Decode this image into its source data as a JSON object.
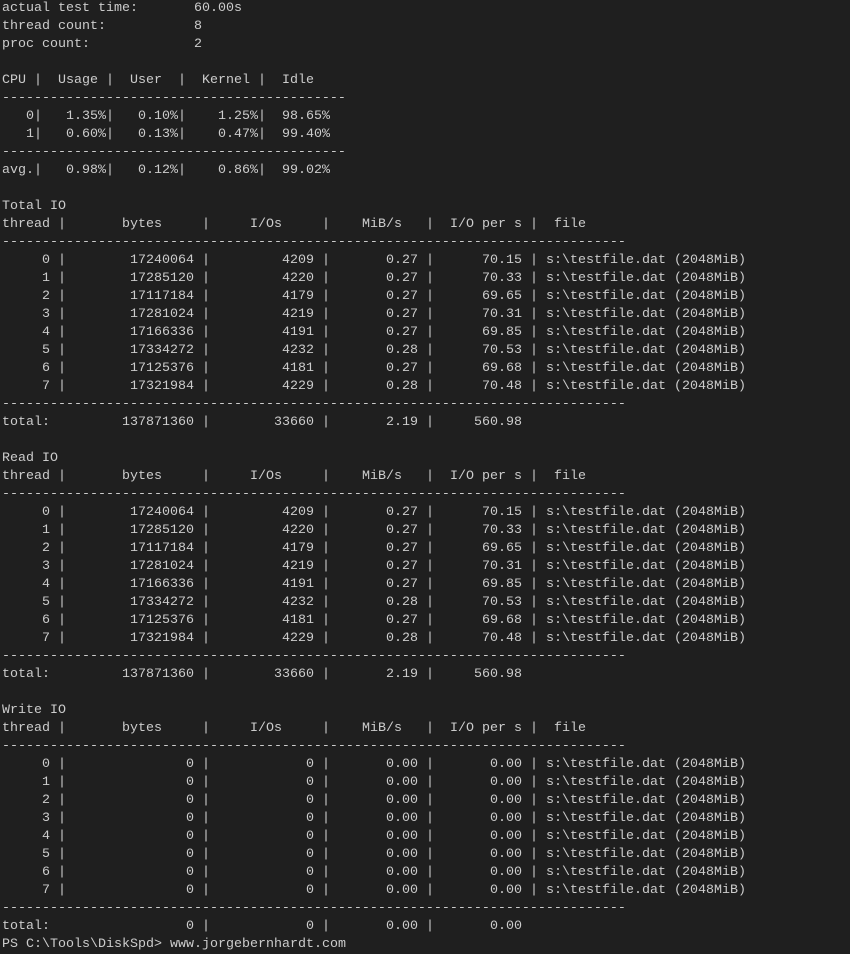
{
  "summary": [
    {
      "label": "actual test time:",
      "value": "60.00s"
    },
    {
      "label": "thread count:",
      "value": "8"
    },
    {
      "label": "proc count:",
      "value": "2"
    }
  ],
  "cpu": {
    "headers": [
      "CPU",
      "Usage",
      "User",
      "Kernel",
      "Idle"
    ],
    "rows": [
      {
        "cpu": "0",
        "usage": "1.35%",
        "user": "0.10%",
        "kernel": "1.25%",
        "idle": "98.65%"
      },
      {
        "cpu": "1",
        "usage": "0.60%",
        "user": "0.13%",
        "kernel": "0.47%",
        "idle": "99.40%"
      }
    ],
    "avg": {
      "cpu": "avg.",
      "usage": "0.98%",
      "user": "0.12%",
      "kernel": "0.86%",
      "idle": "99.02%"
    }
  },
  "io_headers": [
    "thread",
    "bytes",
    "I/Os",
    "MiB/s",
    "I/O per s",
    "file"
  ],
  "sections": [
    {
      "title": "Total IO",
      "rows": [
        {
          "thread": "0",
          "bytes": "17240064",
          "ios": "4209",
          "mibs": "0.27",
          "iops": "70.15",
          "file": "s:\\testfile.dat (2048MiB)"
        },
        {
          "thread": "1",
          "bytes": "17285120",
          "ios": "4220",
          "mibs": "0.27",
          "iops": "70.33",
          "file": "s:\\testfile.dat (2048MiB)"
        },
        {
          "thread": "2",
          "bytes": "17117184",
          "ios": "4179",
          "mibs": "0.27",
          "iops": "69.65",
          "file": "s:\\testfile.dat (2048MiB)"
        },
        {
          "thread": "3",
          "bytes": "17281024",
          "ios": "4219",
          "mibs": "0.27",
          "iops": "70.31",
          "file": "s:\\testfile.dat (2048MiB)"
        },
        {
          "thread": "4",
          "bytes": "17166336",
          "ios": "4191",
          "mibs": "0.27",
          "iops": "69.85",
          "file": "s:\\testfile.dat (2048MiB)"
        },
        {
          "thread": "5",
          "bytes": "17334272",
          "ios": "4232",
          "mibs": "0.28",
          "iops": "70.53",
          "file": "s:\\testfile.dat (2048MiB)"
        },
        {
          "thread": "6",
          "bytes": "17125376",
          "ios": "4181",
          "mibs": "0.27",
          "iops": "69.68",
          "file": "s:\\testfile.dat (2048MiB)"
        },
        {
          "thread": "7",
          "bytes": "17321984",
          "ios": "4229",
          "mibs": "0.28",
          "iops": "70.48",
          "file": "s:\\testfile.dat (2048MiB)"
        }
      ],
      "total": {
        "label": "total:",
        "bytes": "137871360",
        "ios": "33660",
        "mibs": "2.19",
        "iops": "560.98"
      }
    },
    {
      "title": "Read IO",
      "rows": [
        {
          "thread": "0",
          "bytes": "17240064",
          "ios": "4209",
          "mibs": "0.27",
          "iops": "70.15",
          "file": "s:\\testfile.dat (2048MiB)"
        },
        {
          "thread": "1",
          "bytes": "17285120",
          "ios": "4220",
          "mibs": "0.27",
          "iops": "70.33",
          "file": "s:\\testfile.dat (2048MiB)"
        },
        {
          "thread": "2",
          "bytes": "17117184",
          "ios": "4179",
          "mibs": "0.27",
          "iops": "69.65",
          "file": "s:\\testfile.dat (2048MiB)"
        },
        {
          "thread": "3",
          "bytes": "17281024",
          "ios": "4219",
          "mibs": "0.27",
          "iops": "70.31",
          "file": "s:\\testfile.dat (2048MiB)"
        },
        {
          "thread": "4",
          "bytes": "17166336",
          "ios": "4191",
          "mibs": "0.27",
          "iops": "69.85",
          "file": "s:\\testfile.dat (2048MiB)"
        },
        {
          "thread": "5",
          "bytes": "17334272",
          "ios": "4232",
          "mibs": "0.28",
          "iops": "70.53",
          "file": "s:\\testfile.dat (2048MiB)"
        },
        {
          "thread": "6",
          "bytes": "17125376",
          "ios": "4181",
          "mibs": "0.27",
          "iops": "69.68",
          "file": "s:\\testfile.dat (2048MiB)"
        },
        {
          "thread": "7",
          "bytes": "17321984",
          "ios": "4229",
          "mibs": "0.28",
          "iops": "70.48",
          "file": "s:\\testfile.dat (2048MiB)"
        }
      ],
      "total": {
        "label": "total:",
        "bytes": "137871360",
        "ios": "33660",
        "mibs": "2.19",
        "iops": "560.98"
      }
    },
    {
      "title": "Write IO",
      "rows": [
        {
          "thread": "0",
          "bytes": "0",
          "ios": "0",
          "mibs": "0.00",
          "iops": "0.00",
          "file": "s:\\testfile.dat (2048MiB)"
        },
        {
          "thread": "1",
          "bytes": "0",
          "ios": "0",
          "mibs": "0.00",
          "iops": "0.00",
          "file": "s:\\testfile.dat (2048MiB)"
        },
        {
          "thread": "2",
          "bytes": "0",
          "ios": "0",
          "mibs": "0.00",
          "iops": "0.00",
          "file": "s:\\testfile.dat (2048MiB)"
        },
        {
          "thread": "3",
          "bytes": "0",
          "ios": "0",
          "mibs": "0.00",
          "iops": "0.00",
          "file": "s:\\testfile.dat (2048MiB)"
        },
        {
          "thread": "4",
          "bytes": "0",
          "ios": "0",
          "mibs": "0.00",
          "iops": "0.00",
          "file": "s:\\testfile.dat (2048MiB)"
        },
        {
          "thread": "5",
          "bytes": "0",
          "ios": "0",
          "mibs": "0.00",
          "iops": "0.00",
          "file": "s:\\testfile.dat (2048MiB)"
        },
        {
          "thread": "6",
          "bytes": "0",
          "ios": "0",
          "mibs": "0.00",
          "iops": "0.00",
          "file": "s:\\testfile.dat (2048MiB)"
        },
        {
          "thread": "7",
          "bytes": "0",
          "ios": "0",
          "mibs": "0.00",
          "iops": "0.00",
          "file": "s:\\testfile.dat (2048MiB)"
        }
      ],
      "total": {
        "label": "total:",
        "bytes": "0",
        "ios": "0",
        "mibs": "0.00",
        "iops": "0.00"
      }
    }
  ],
  "prompt": {
    "path": "PS C:\\Tools\\DiskSpd>",
    "command": "www.jorgebernhardt.com"
  },
  "colors": {
    "background": "#1f1f1f",
    "text": "#cccccc"
  }
}
